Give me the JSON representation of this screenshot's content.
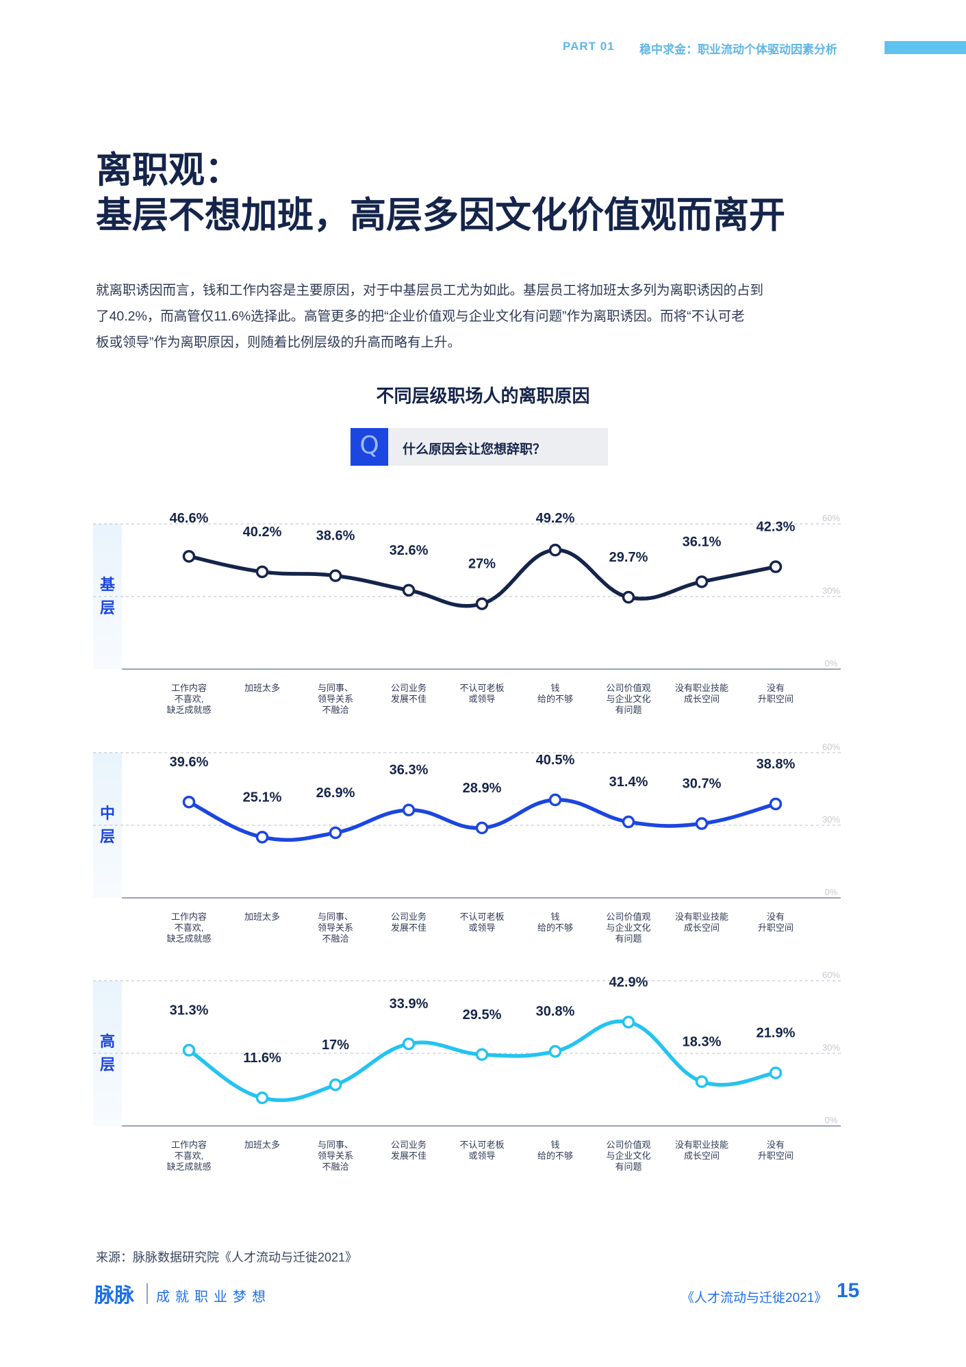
{
  "header": {
    "part": "PART 01",
    "section": "稳中求金：职业流动个体驱动因素分析"
  },
  "title": {
    "line1": "离职观：",
    "line2": "基层不想加班，高层多因文化价值观而离开"
  },
  "intro": {
    "line1": "就离职诱因而言，钱和工作内容是主要原因，对于中基层员工尤为如此。基层员工将加班太多列为离职诱因的占到",
    "line2": "了40.2%，而高管仅11.6%选择此。高管更多的把“企业价值观与企业文化有问题”作为离职诱因。而将“不认可老",
    "line3": "板或领导”作为离职原因，则随着比例层级的升高而略有上升。"
  },
  "question": {
    "icon": "Q",
    "text": "什么原因会让您想辞职？"
  },
  "chart_data": {
    "type": "line",
    "title": "不同层级职场人的离职原因",
    "categories": [
      [
        "工作内容",
        "不喜欢,",
        "缺乏成就感"
      ],
      [
        "加班太多"
      ],
      [
        "与同事、",
        "领导关系",
        "不融洽"
      ],
      [
        "公司业务",
        "发展不佳"
      ],
      [
        "不认可老板",
        "或领导"
      ],
      [
        "钱",
        "给的不够"
      ],
      [
        "公司价值观",
        "与企业文化",
        "有问题"
      ],
      [
        "没有职业技能",
        "成长空间"
      ],
      [
        "没有",
        "升职空间"
      ]
    ],
    "ylim": [
      0,
      60
    ],
    "yticks": [
      "0%",
      "30%",
      "60%"
    ],
    "series": [
      {
        "name": "基层",
        "name_chars": [
          "基",
          "层"
        ],
        "color": "#15244a",
        "values": [
          46.6,
          40.2,
          38.6,
          32.6,
          27,
          49.2,
          29.7,
          36.1,
          42.3
        ],
        "labels": [
          "46.6%",
          "40.2%",
          "38.6%",
          "32.6%",
          "27%",
          "49.2%",
          "29.7%",
          "36.1%",
          "42.3%"
        ]
      },
      {
        "name": "中层",
        "name_chars": [
          "中",
          "层"
        ],
        "color": "#1c46e0",
        "values": [
          39.6,
          25.1,
          26.9,
          36.3,
          28.9,
          40.5,
          31.4,
          30.7,
          38.8
        ],
        "labels": [
          "39.6%",
          "25.1%",
          "26.9%",
          "36.3%",
          "28.9%",
          "40.5%",
          "31.4%",
          "30.7%",
          "38.8%"
        ]
      },
      {
        "name": "高层",
        "name_chars": [
          "高",
          "层"
        ],
        "color": "#24c3f0",
        "values": [
          31.3,
          11.6,
          17,
          33.9,
          29.5,
          30.8,
          42.9,
          18.3,
          21.9
        ],
        "labels": [
          "31.3%",
          "11.6%",
          "17%",
          "33.9%",
          "29.5%",
          "30.8%",
          "42.9%",
          "18.3%",
          "21.9%"
        ]
      }
    ]
  },
  "footer": {
    "source": "来源：脉脉数据研究院《人才流动与迁徙2021》",
    "logo": "脉脉",
    "slogan": "成就职业梦想",
    "report": "《人才流动与迁徙2021》",
    "page": "15"
  }
}
